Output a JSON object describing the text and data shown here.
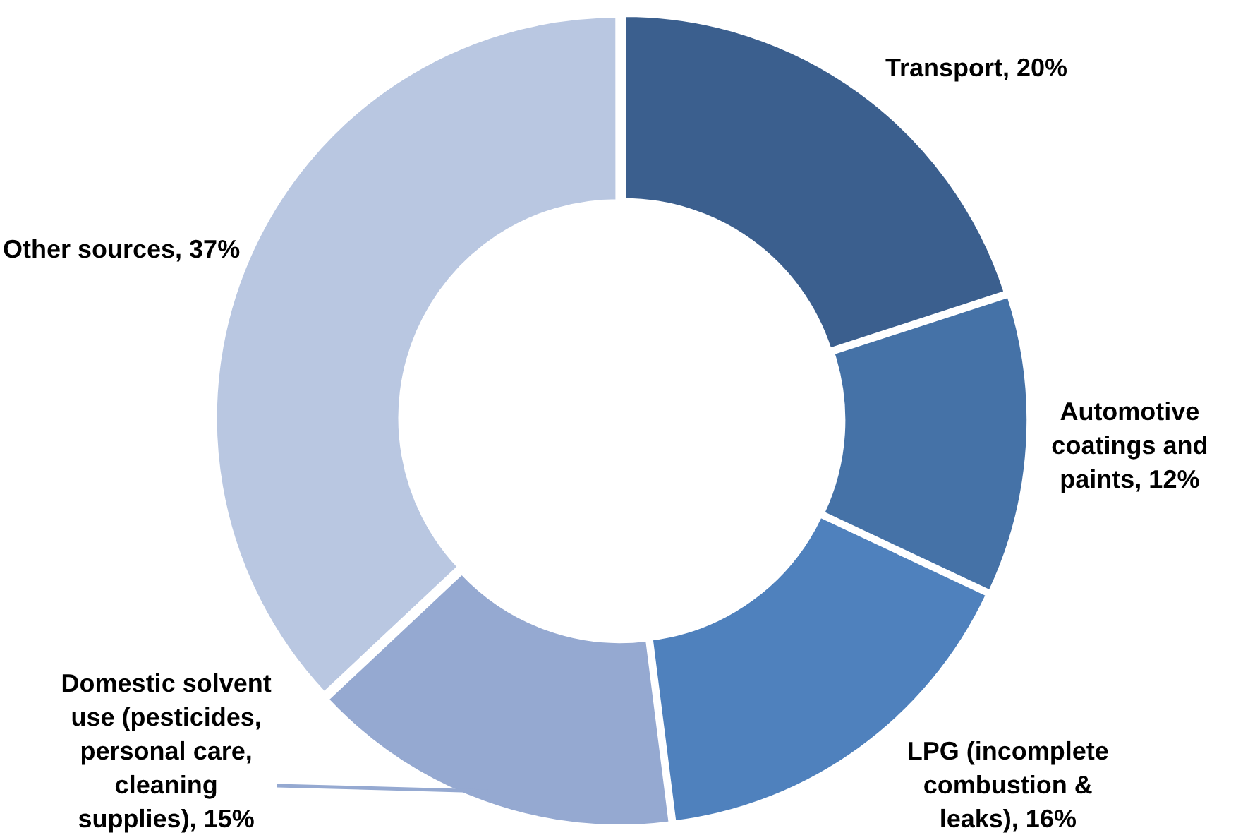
{
  "chart_data": {
    "type": "donut",
    "categories": [
      "Transport",
      "Automotive coatings and paints",
      "LPG (incomplete combustion & leaks)",
      "Domestic solvent use (pesticides, personal care, cleaning supplies)",
      "Other sources"
    ],
    "values": [
      20,
      12,
      16,
      15,
      37
    ],
    "value_labels": [
      "20%",
      "12%",
      "16%",
      "15%",
      "37%"
    ],
    "colors": [
      "#3b5f8e",
      "#4572a7",
      "#4f81bd",
      "#95a9d1",
      "#b9c7e1"
    ],
    "legend": false
  }
}
